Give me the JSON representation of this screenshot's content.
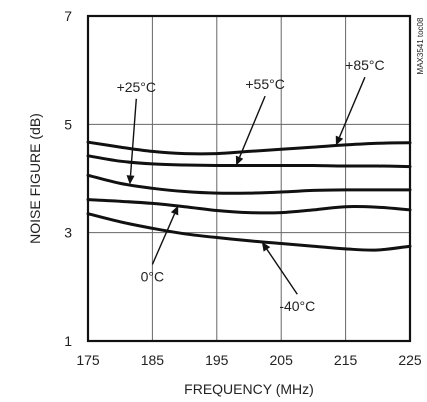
{
  "chart_data": {
    "type": "line",
    "title": "",
    "xlabel": "FREQUENCY (MHz)",
    "ylabel": "NOISE FIGURE (dB)",
    "xlim": [
      175,
      225
    ],
    "ylim": [
      1,
      7
    ],
    "x_ticks": [
      175,
      185,
      195,
      205,
      215,
      225
    ],
    "y_ticks": [
      1,
      3,
      5,
      7
    ],
    "grid": true,
    "side_tag": "MAX3541 toc08",
    "series": [
      {
        "name": "+85°C",
        "x": [
          175,
          180,
          185,
          190,
          195,
          200,
          205,
          210,
          215,
          220,
          225
        ],
        "y": [
          4.67,
          4.58,
          4.5,
          4.46,
          4.46,
          4.5,
          4.54,
          4.58,
          4.62,
          4.65,
          4.66
        ]
      },
      {
        "name": "+55°C",
        "x": [
          175,
          180,
          185,
          190,
          195,
          200,
          205,
          210,
          215,
          220,
          225
        ],
        "y": [
          4.42,
          4.32,
          4.27,
          4.25,
          4.24,
          4.24,
          4.24,
          4.24,
          4.23,
          4.23,
          4.22
        ]
      },
      {
        "name": "+25°C",
        "x": [
          175,
          180,
          185,
          190,
          195,
          200,
          205,
          210,
          215,
          220,
          225
        ],
        "y": [
          4.06,
          3.91,
          3.82,
          3.76,
          3.73,
          3.73,
          3.75,
          3.78,
          3.79,
          3.79,
          3.79
        ]
      },
      {
        "name": "0°C",
        "x": [
          175,
          180,
          185,
          190,
          195,
          200,
          205,
          210,
          215,
          220,
          225
        ],
        "y": [
          3.61,
          3.58,
          3.54,
          3.48,
          3.41,
          3.37,
          3.37,
          3.42,
          3.48,
          3.47,
          3.42
        ]
      },
      {
        "name": "-40°C",
        "x": [
          175,
          180,
          185,
          190,
          195,
          200,
          205,
          210,
          215,
          220,
          225
        ],
        "y": [
          3.35,
          3.2,
          3.08,
          2.98,
          2.91,
          2.85,
          2.8,
          2.75,
          2.7,
          2.68,
          2.75
        ]
      }
    ],
    "annotations": [
      {
        "text": "+25°C",
        "tx": 182.5,
        "ty": 5.6,
        "ax": 181.5,
        "ay": 3.89
      },
      {
        "text": "+55°C",
        "tx": 202.5,
        "ty": 5.65,
        "ax": 198,
        "ay": 4.24
      },
      {
        "text": "+85°C",
        "tx": 218,
        "ty": 6.0,
        "ax": 213.5,
        "ay": 4.61
      },
      {
        "text": "0°C",
        "tx": 185,
        "ty": 2.1,
        "ax": 189,
        "ay": 3.5
      },
      {
        "text": "-40°C",
        "tx": 207.5,
        "ty": 1.55,
        "ax": 202,
        "ay": 2.83
      }
    ]
  }
}
